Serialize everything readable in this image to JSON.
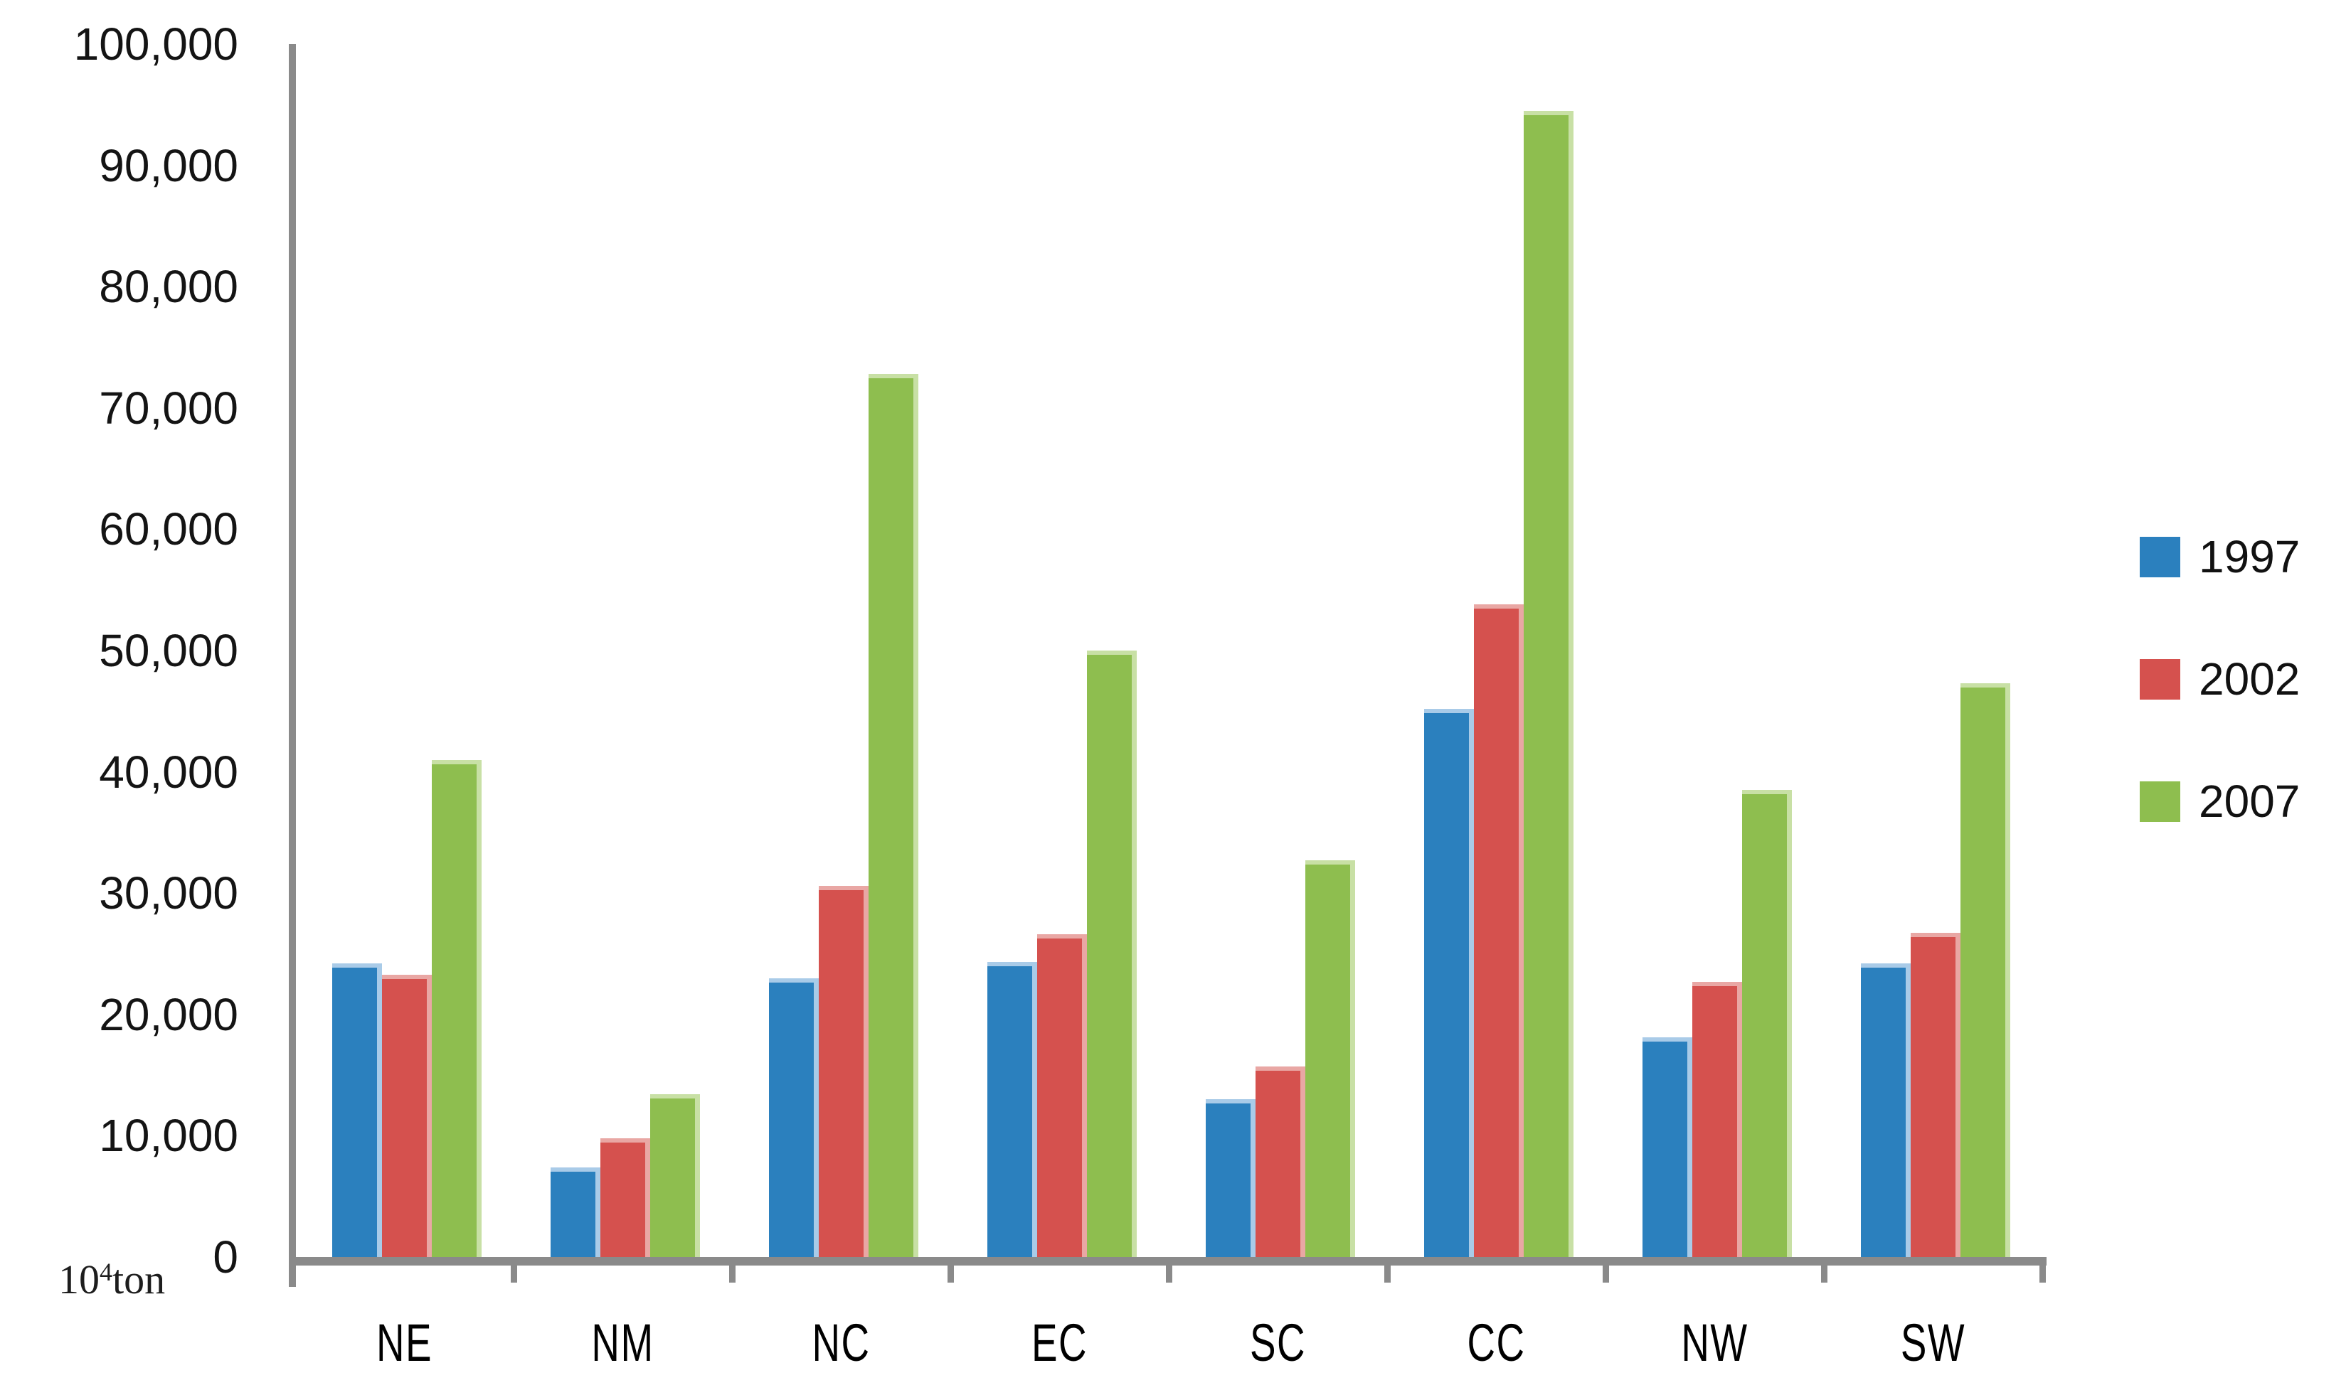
{
  "chart_data": {
    "type": "bar",
    "title": "",
    "unit_label": {
      "base": "10",
      "exponent": "4",
      "suffix": "ton"
    },
    "categories": [
      "NE",
      "NM",
      "NC",
      "EC",
      "SC",
      "CC",
      "NW",
      "SW"
    ],
    "series": [
      {
        "name": "1997",
        "color": "#2B80BE",
        "edge_color": "#A9CBE8",
        "values": [
          24200,
          7400,
          23000,
          24300,
          13000,
          45200,
          18100,
          24200
        ]
      },
      {
        "name": "2002",
        "color": "#D5514E",
        "edge_color": "#E9A7A4",
        "values": [
          23300,
          9800,
          30600,
          26600,
          15700,
          53800,
          22700,
          26700
        ]
      },
      {
        "name": "2007",
        "color": "#8EBE4F",
        "edge_color": "#C8E0A5",
        "values": [
          41000,
          13400,
          72800,
          50000,
          32700,
          94500,
          38500,
          47300
        ]
      }
    ],
    "ylim": [
      0,
      100000
    ],
    "y_tick_step": 10000,
    "y_tick_labels": [
      "100,000",
      "90,000",
      "80,000",
      "70,000",
      "60,000",
      "50,000",
      "40,000",
      "30,000",
      "20,000",
      "10,000",
      "0"
    ],
    "grid": false,
    "legend_position": "right",
    "axis_color": "#8A8A8A"
  }
}
